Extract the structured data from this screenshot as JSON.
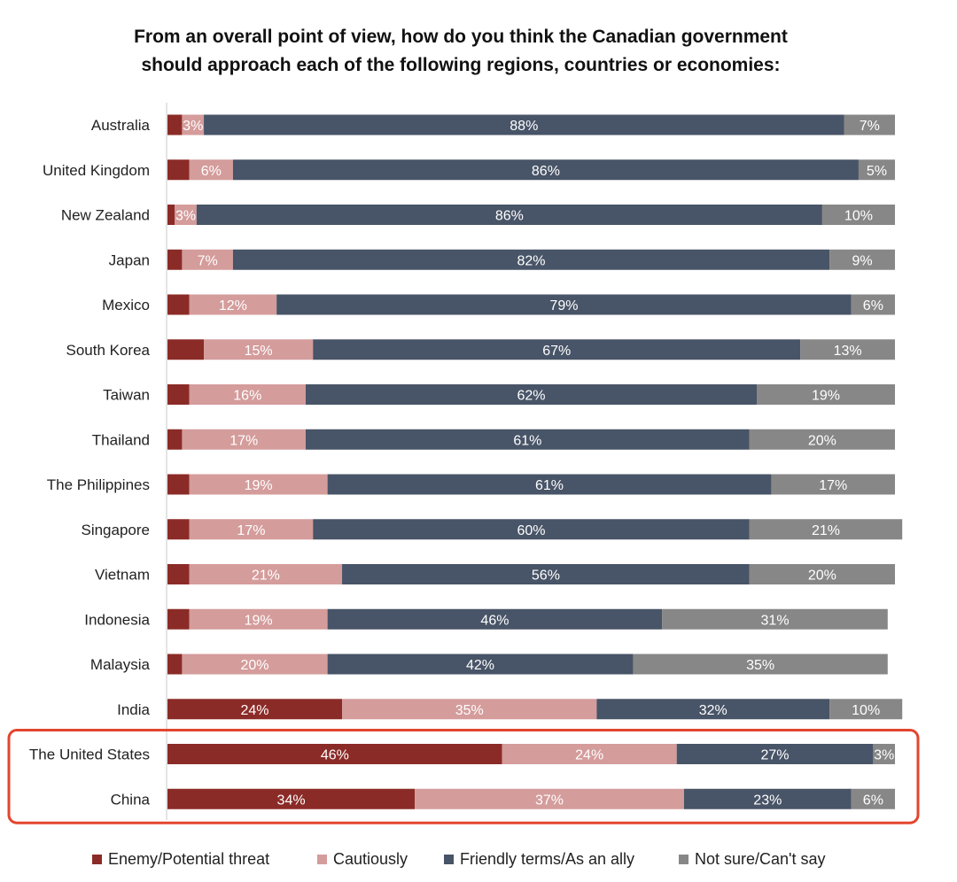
{
  "title_lines": [
    "From an overall point of view, how do you think the Canadian government",
    "should approach each of the following regions, countries or economies:"
  ],
  "colors": {
    "enemy": "#8b2b27",
    "cautious": "#d49c9b",
    "friendly": "#485467",
    "notsure": "#878787",
    "highlight": "#e3452f",
    "axis": "#c8c8c8"
  },
  "legend": [
    {
      "label": "Enemy/Potential threat",
      "color": "#8b2b27"
    },
    {
      "label": "Cautiously",
      "color": "#d49c9b"
    },
    {
      "label": "Friendly terms/As an ally",
      "color": "#485467"
    },
    {
      "label": "Not sure/Can't say",
      "color": "#878787"
    }
  ],
  "highlighted_categories": [
    "The United States",
    "China"
  ],
  "chart_data": {
    "type": "bar",
    "orientation": "horizontal",
    "stacked": true,
    "normalized": true,
    "title": "From an overall point of view, how do you think the Canadian government should approach each of the following regions, countries or economies:",
    "xlabel": "",
    "ylabel": "",
    "xlim": [
      0,
      100
    ],
    "grid": false,
    "legend_position": "bottom",
    "categories": [
      "Australia",
      "United Kingdom",
      "New Zealand",
      "Japan",
      "Mexico",
      "South Korea",
      "Taiwan",
      "Thailand",
      "The Philippines",
      "Singapore",
      "Vietnam",
      "Indonesia",
      "Malaysia",
      "India",
      "The United States",
      "China"
    ],
    "series": [
      {
        "name": "Enemy/Potential threat",
        "values": [
          2,
          3,
          1,
          2,
          3,
          5,
          3,
          2,
          3,
          3,
          3,
          3,
          2,
          24,
          46,
          34
        ]
      },
      {
        "name": "Cautiously",
        "values": [
          3,
          6,
          3,
          7,
          12,
          15,
          16,
          17,
          19,
          17,
          21,
          19,
          20,
          35,
          24,
          37
        ]
      },
      {
        "name": "Friendly terms/As an ally",
        "values": [
          88,
          86,
          86,
          82,
          79,
          67,
          62,
          61,
          61,
          60,
          56,
          46,
          42,
          32,
          27,
          23
        ]
      },
      {
        "name": "Not sure/Can't say",
        "values": [
          7,
          5,
          10,
          9,
          6,
          13,
          19,
          20,
          17,
          21,
          20,
          31,
          35,
          10,
          3,
          6
        ]
      }
    ],
    "data_labels": [
      [
        "",
        "3%",
        "88%",
        "7%"
      ],
      [
        "",
        "6%",
        "86%",
        "5%"
      ],
      [
        "",
        "3%",
        "86%",
        "10%"
      ],
      [
        "",
        "7%",
        "82%",
        "9%"
      ],
      [
        "",
        "12%",
        "79%",
        "6%"
      ],
      [
        "",
        "15%",
        "67%",
        "13%"
      ],
      [
        "",
        "16%",
        "62%",
        "19%"
      ],
      [
        "",
        "17%",
        "61%",
        "20%"
      ],
      [
        "",
        "19%",
        "61%",
        "17%"
      ],
      [
        "",
        "17%",
        "60%",
        "21%"
      ],
      [
        "",
        "21%",
        "56%",
        "20%"
      ],
      [
        "",
        "19%",
        "46%",
        "31%"
      ],
      [
        "",
        "20%",
        "42%",
        "35%"
      ],
      [
        "24%",
        "35%",
        "32%",
        "10%"
      ],
      [
        "46%",
        "24%",
        "27%",
        "3%"
      ],
      [
        "34%",
        "37%",
        "23%",
        "6%"
      ]
    ]
  }
}
